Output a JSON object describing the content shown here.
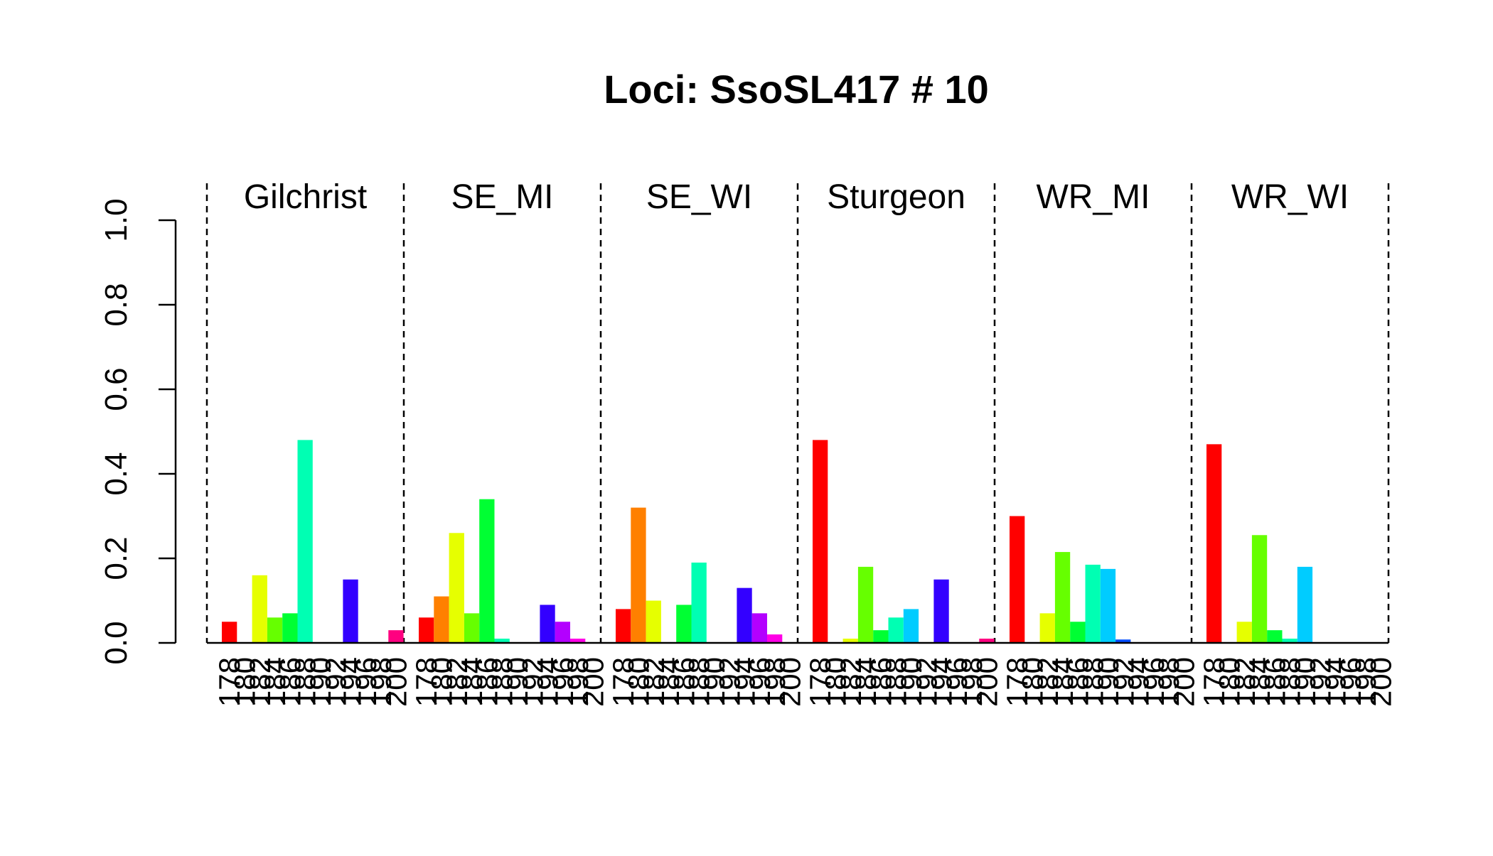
{
  "chart_data": {
    "type": "bar",
    "title": "Loci: SsoSL417 # 10",
    "xlabel": "",
    "ylabel": "",
    "ylim": [
      0,
      1.0
    ],
    "y_ticks": [
      "0.0",
      "0.2",
      "0.4",
      "0.6",
      "0.8",
      "1.0"
    ],
    "grid": false,
    "legend": "none",
    "categories": [
      "178",
      "180",
      "182",
      "184",
      "186",
      "188",
      "190",
      "192",
      "194",
      "196",
      "198",
      "200"
    ],
    "colors": [
      "#FF0000",
      "#FF8000",
      "#E6FF00",
      "#66FF00",
      "#00FF33",
      "#00FFB3",
      "#00CCFF",
      "#004CFF",
      "#3300FF",
      "#B300FF",
      "#FF00E6",
      "#FF0080"
    ],
    "panels": [
      {
        "name": "Gilchrist",
        "values": [
          0.05,
          0.0,
          0.16,
          0.06,
          0.07,
          0.48,
          0.0,
          0.0,
          0.15,
          0.0,
          0.0,
          0.03
        ]
      },
      {
        "name": "SE_MI",
        "values": [
          0.06,
          0.11,
          0.26,
          0.07,
          0.34,
          0.01,
          0.0,
          0.0,
          0.09,
          0.05,
          0.01,
          0.0
        ]
      },
      {
        "name": "SE_WI",
        "values": [
          0.08,
          0.32,
          0.1,
          0.0,
          0.09,
          0.19,
          0.0,
          0.0,
          0.13,
          0.07,
          0.02,
          0.0
        ]
      },
      {
        "name": "Sturgeon",
        "values": [
          0.48,
          0.0,
          0.01,
          0.18,
          0.03,
          0.06,
          0.08,
          0.0,
          0.15,
          0.0,
          0.0,
          0.01
        ]
      },
      {
        "name": "WR_MI",
        "values": [
          0.3,
          0.0,
          0.07,
          0.215,
          0.05,
          0.185,
          0.175,
          0.008,
          0.0,
          0.0,
          0.0,
          0.0
        ]
      },
      {
        "name": "WR_WI",
        "values": [
          0.47,
          0.0,
          0.05,
          0.255,
          0.03,
          0.01,
          0.18,
          0.0,
          0.0,
          0.0,
          0.0,
          0.0
        ]
      }
    ]
  }
}
